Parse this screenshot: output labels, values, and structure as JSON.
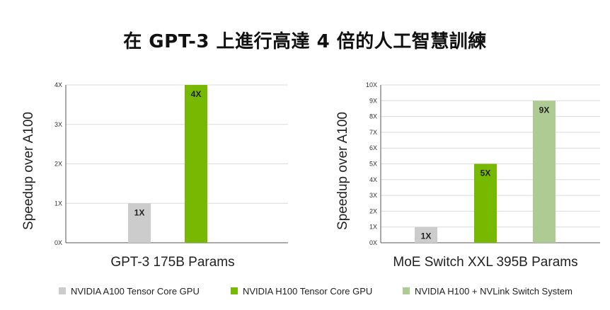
{
  "title": "在 GPT-3 上進行高達 4 倍的人工智慧訓練",
  "colors": {
    "a100": "#cccccc",
    "h100": "#76b900",
    "h100_nvlink": "#aecb94",
    "grid": "#dcdcdc",
    "axis": "#555555"
  },
  "legend": [
    {
      "label": "NVIDIA A100 Tensor Core GPU",
      "color": "#cccccc"
    },
    {
      "label": "NVIDIA H100 Tensor Core GPU",
      "color": "#76b900"
    },
    {
      "label": "NVIDIA H100 + NVLink Switch System",
      "color": "#aecb94"
    }
  ],
  "chart_data": [
    {
      "type": "bar",
      "title": "",
      "xlabel": "GPT-3 175B Params",
      "ylabel": "Speedup over A100",
      "ylim": [
        0,
        4
      ],
      "yticks": [
        "0X",
        "1X",
        "2X",
        "3X",
        "4X"
      ],
      "grid": true,
      "bars": [
        {
          "value": 1,
          "label": "1X",
          "color": "#cccccc"
        },
        {
          "value": 4,
          "label": "4X",
          "color": "#76b900"
        }
      ]
    },
    {
      "type": "bar",
      "title": "",
      "xlabel": "MoE Switch XXL 395B Params",
      "ylabel": "Speedup over A100",
      "ylim": [
        0,
        10
      ],
      "yticks": [
        "0X",
        "1X",
        "2X",
        "3X",
        "4X",
        "5X",
        "6X",
        "7X",
        "8X",
        "9X",
        "10X"
      ],
      "grid": true,
      "bars": [
        {
          "value": 1,
          "label": "1X",
          "color": "#cccccc"
        },
        {
          "value": 5,
          "label": "5X",
          "color": "#76b900"
        },
        {
          "value": 9,
          "label": "9X",
          "color": "#aecb94"
        }
      ]
    }
  ]
}
